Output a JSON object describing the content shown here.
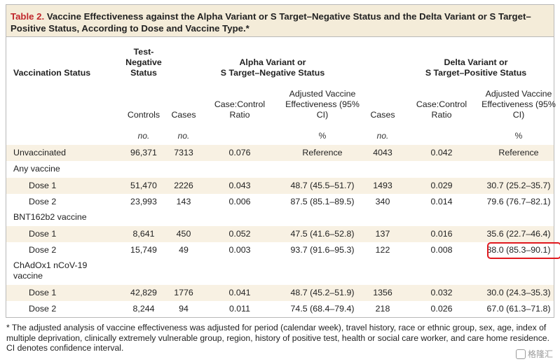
{
  "table": {
    "label": "Table 2.",
    "title": "Vaccine Effectiveness against the Alpha Variant or S Target–Negative Status and the Delta Variant or S Target–Positive Status, According to Dose and Vaccine Type.*",
    "headers": {
      "vaccination_status": "Vaccination Status",
      "test_negative": "Test-Negative Status",
      "alpha_group_line1": "Alpha Variant or",
      "alpha_group_line2": "S Target–Negative Status",
      "delta_group_line1": "Delta Variant or",
      "delta_group_line2": "S Target–Positive Status",
      "controls": "Controls",
      "cases": "Cases",
      "ratio": "Case:Control Ratio",
      "adjusted": "Adjusted Vaccine Effectiveness (95% CI)",
      "alpha_cases": "Cases",
      "delta_ratio": "Case:Control Ratio",
      "delta_adjusted": "Adjusted Vaccine Effectiveness (95% CI)"
    },
    "units": {
      "controls": "no.",
      "cases": "no.",
      "adjusted": "%",
      "delta_cases": "no.",
      "delta_adjusted": "%"
    },
    "groups": {
      "any": "Any vaccine",
      "bnt": "BNT162b2 vaccine",
      "chad": "ChAdOx1 nCoV-19 vaccine"
    },
    "rows": [
      {
        "label": "Unvaccinated",
        "controls": "96,371",
        "cases": "7313",
        "ratio": "0.076",
        "ve": "Reference",
        "d_cases": "4043",
        "d_ratio": "0.042",
        "d_ve": "Reference"
      },
      {
        "label": "Dose 1",
        "controls": "51,470",
        "cases": "2226",
        "ratio": "0.043",
        "ve": "48.7 (45.5–51.7)",
        "d_cases": "1493",
        "d_ratio": "0.029",
        "d_ve": "30.7 (25.2–35.7)"
      },
      {
        "label": "Dose 2",
        "controls": "23,993",
        "cases": "143",
        "ratio": "0.006",
        "ve": "87.5 (85.1–89.5)",
        "d_cases": "340",
        "d_ratio": "0.014",
        "d_ve": "79.6 (76.7–82.1)"
      },
      {
        "label": "Dose 1",
        "controls": "8,641",
        "cases": "450",
        "ratio": "0.052",
        "ve": "47.5 (41.6–52.8)",
        "d_cases": "137",
        "d_ratio": "0.016",
        "d_ve": "35.6 (22.7–46.4)"
      },
      {
        "label": "Dose 2",
        "controls": "15,749",
        "cases": "49",
        "ratio": "0.003",
        "ve": "93.7 (91.6–95.3)",
        "d_cases": "122",
        "d_ratio": "0.008",
        "d_ve": "88.0 (85.3–90.1)"
      },
      {
        "label": "Dose 1",
        "controls": "42,829",
        "cases": "1776",
        "ratio": "0.041",
        "ve": "48.7 (45.2–51.9)",
        "d_cases": "1356",
        "d_ratio": "0.032",
        "d_ve": "30.0 (24.3–35.3)"
      },
      {
        "label": "Dose 2",
        "controls": "8,244",
        "cases": "94",
        "ratio": "0.011",
        "ve": "74.5 (68.4–79.4)",
        "d_cases": "218",
        "d_ratio": "0.026",
        "d_ve": "67.0 (61.3–71.8)"
      }
    ]
  },
  "footnote": "* The adjusted analysis of vaccine effectiveness was adjusted for period (calendar week), travel history, race or ethnic group, sex, age, index of multiple deprivation, clinically extremely vulnerable group, region, history of positive test, health or social care worker, and care home residence. CI denotes confidence interval.",
  "watermark": "格隆汇"
}
